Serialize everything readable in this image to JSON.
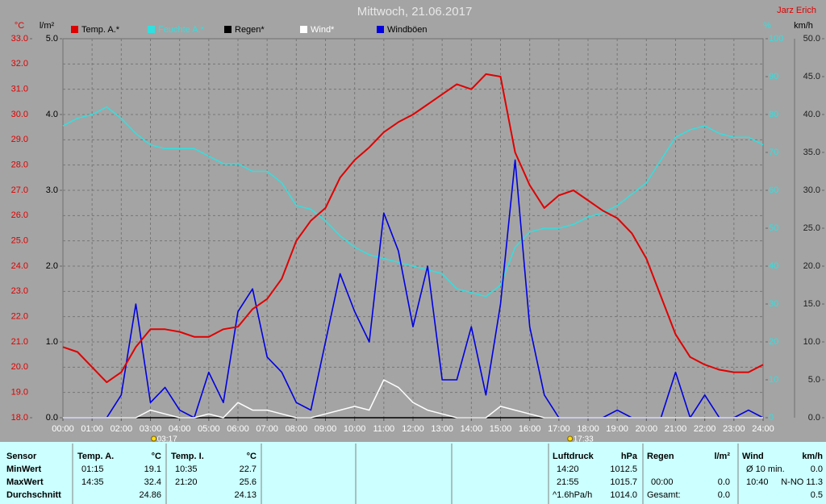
{
  "chart_data": {
    "type": "line",
    "title": "Mittwoch, 21.06.2017",
    "author": "Jarz Erich",
    "ylabel": "°C",
    "y2label": "l/m²",
    "y3label": "%",
    "y4label": "km/h",
    "xlim": [
      0,
      24
    ],
    "xticks": [
      {
        "value": 0,
        "label": "00:00"
      },
      {
        "value": 1,
        "label": "01:00"
      },
      {
        "value": 2,
        "label": "02:00"
      },
      {
        "value": 3,
        "label": "03:00"
      },
      {
        "value": 4,
        "label": "04:00"
      },
      {
        "value": 5,
        "label": "05:00"
      },
      {
        "value": 6,
        "label": "06:00"
      },
      {
        "value": 7,
        "label": "07:00"
      },
      {
        "value": 8,
        "label": "08:00"
      },
      {
        "value": 9,
        "label": "09:00"
      },
      {
        "value": 10,
        "label": "10:00"
      },
      {
        "value": 11,
        "label": "11:00"
      },
      {
        "value": 12,
        "label": "12:00"
      },
      {
        "value": 13,
        "label": "13:00"
      },
      {
        "value": 14,
        "label": "14:00"
      },
      {
        "value": 15,
        "label": "15:00"
      },
      {
        "value": 16,
        "label": "16:00"
      },
      {
        "value": 17,
        "label": "17:00"
      },
      {
        "value": 18,
        "label": "18:00"
      },
      {
        "value": 19,
        "label": "19:00"
      },
      {
        "value": 20,
        "label": "20:00"
      },
      {
        "value": 21,
        "label": "21:00"
      },
      {
        "value": 22,
        "label": "22:00"
      },
      {
        "value": 23,
        "label": "23:00"
      },
      {
        "value": 24,
        "label": "24:00"
      }
    ],
    "ylim": [
      18,
      33
    ],
    "yticks": [
      {
        "value": 18,
        "label": "18.0"
      },
      {
        "value": 19,
        "label": "19.0"
      },
      {
        "value": 20,
        "label": "20.0"
      },
      {
        "value": 21,
        "label": "21.0"
      },
      {
        "value": 22,
        "label": "22.0"
      },
      {
        "value": 23,
        "label": "23.0"
      },
      {
        "value": 24,
        "label": "24.0"
      },
      {
        "value": 25,
        "label": "25.0"
      },
      {
        "value": 26,
        "label": "26.0"
      },
      {
        "value": 27,
        "label": "27.0"
      },
      {
        "value": 28,
        "label": "28.0"
      },
      {
        "value": 29,
        "label": "29.0"
      },
      {
        "value": 30,
        "label": "30.0"
      },
      {
        "value": 31,
        "label": "31.0"
      },
      {
        "value": 32,
        "label": "32.0"
      },
      {
        "value": 33,
        "label": "33.0"
      }
    ],
    "y2lim": [
      0,
      5
    ],
    "y2ticks": [
      {
        "value": 0,
        "label": "0.0"
      },
      {
        "value": 1,
        "label": "1.0"
      },
      {
        "value": 2,
        "label": "2.0"
      },
      {
        "value": 3,
        "label": "3.0"
      },
      {
        "value": 4,
        "label": "4.0"
      },
      {
        "value": 5,
        "label": "5.0"
      }
    ],
    "y3lim": [
      0,
      100
    ],
    "y3ticks": [
      0,
      10,
      20,
      30,
      40,
      50,
      60,
      70,
      80,
      90,
      100
    ],
    "y4lim": [
      0,
      50
    ],
    "y4ticks": [
      {
        "value": 0,
        "label": "0.0"
      },
      {
        "value": 5,
        "label": "5.0"
      },
      {
        "value": 10,
        "label": "10.0"
      },
      {
        "value": 15,
        "label": "15.0"
      },
      {
        "value": 20,
        "label": "20.0"
      },
      {
        "value": 25,
        "label": "25.0"
      },
      {
        "value": 30,
        "label": "30.0"
      },
      {
        "value": 35,
        "label": "35.0"
      },
      {
        "value": 40,
        "label": "40.0"
      },
      {
        "value": 45,
        "label": "45.0"
      },
      {
        "value": 50,
        "label": "50.0"
      }
    ],
    "grid": true,
    "x": [
      0,
      0.5,
      1,
      1.5,
      2,
      2.5,
      3,
      3.5,
      4,
      4.5,
      5,
      5.5,
      6,
      6.5,
      7,
      7.5,
      8,
      8.5,
      9,
      9.5,
      10,
      10.5,
      11,
      11.5,
      12,
      12.5,
      13,
      13.5,
      14,
      14.5,
      15,
      15.5,
      16,
      16.5,
      17,
      17.5,
      18,
      18.5,
      19,
      19.5,
      20,
      20.5,
      21,
      21.5,
      22,
      22.5,
      23,
      23.5,
      24
    ],
    "series": [
      {
        "name": "Temp. A.*",
        "color": "#e00000",
        "axis": "y",
        "values": [
          20.8,
          20.6,
          20.0,
          19.4,
          19.8,
          20.8,
          21.5,
          21.5,
          21.4,
          21.2,
          21.2,
          21.5,
          21.6,
          22.3,
          22.7,
          23.5,
          25.0,
          25.8,
          26.3,
          27.5,
          28.2,
          28.7,
          29.3,
          29.7,
          30.0,
          30.4,
          30.8,
          31.2,
          31.0,
          31.6,
          31.5,
          28.5,
          27.2,
          26.3,
          26.8,
          27.0,
          26.6,
          26.2,
          25.9,
          25.3,
          24.3,
          22.8,
          21.3,
          20.4,
          20.1,
          19.9,
          19.8,
          19.8,
          20.1
        ]
      },
      {
        "name": "Feuchte A.*",
        "color": "#30e0e0",
        "axis": "y3",
        "values": [
          77,
          79,
          80,
          82,
          79,
          75,
          72,
          71,
          71,
          71,
          69,
          67,
          67,
          65,
          65,
          62,
          56,
          55,
          52,
          48,
          45,
          43,
          42,
          41,
          40,
          39,
          38,
          34,
          33,
          32,
          35,
          45,
          49,
          50,
          50,
          51,
          53,
          54,
          56,
          59,
          62,
          68,
          74,
          76,
          77,
          75,
          74,
          74,
          72
        ]
      },
      {
        "name": "Regen*",
        "color": "#000000",
        "axis": "y2",
        "values": [
          0,
          0,
          0,
          0,
          0,
          0,
          0,
          0,
          0,
          0,
          0,
          0,
          0,
          0,
          0,
          0,
          0,
          0,
          0,
          0,
          0,
          0,
          0,
          0,
          0,
          0,
          0,
          0,
          0,
          0,
          0,
          0,
          0,
          0,
          0,
          0,
          0,
          0,
          0,
          0,
          0,
          0,
          0,
          0,
          0,
          0,
          0,
          0,
          0
        ]
      },
      {
        "name": "Wind*",
        "color": "#ffffff",
        "axis": "y4",
        "values": [
          0,
          0,
          0,
          0,
          0,
          0,
          1,
          0.5,
          0,
          0,
          0.5,
          0,
          2,
          1,
          1,
          0.5,
          0,
          0,
          0.5,
          1,
          1.5,
          1,
          5,
          4,
          2,
          1,
          0.5,
          0,
          0,
          0,
          1.5,
          1,
          0.5,
          0,
          0,
          0,
          0,
          0,
          0,
          0,
          0,
          0,
          0,
          0,
          0,
          0,
          0,
          0,
          0
        ]
      },
      {
        "name": "Windböen",
        "color": "#0000e0",
        "axis": "y4",
        "values": [
          0,
          0,
          0,
          0,
          3,
          15,
          2,
          4,
          1,
          0,
          6,
          2,
          14,
          17,
          8,
          6,
          2,
          1,
          10,
          19,
          14,
          10,
          27,
          22,
          12,
          20,
          5,
          5,
          12,
          3,
          15,
          34,
          12,
          3,
          0,
          0,
          0,
          0,
          1,
          0,
          0,
          0,
          6,
          0,
          3,
          0,
          0,
          1,
          0
        ]
      }
    ],
    "annotations": [
      {
        "x": 3.28,
        "label": "03:17"
      },
      {
        "x": 17.55,
        "label": "17:33"
      }
    ]
  },
  "table": {
    "columns": [
      "Sensor",
      "Temp. A.",
      "°C",
      "Temp. I.",
      "°C",
      "Luftdruck",
      "hPa",
      "Regen",
      "l/m²",
      "Wind",
      "km/h"
    ],
    "rows": [
      [
        "MinWert",
        "01:15",
        "19.1",
        "10:35",
        "22.7",
        "14:20",
        "1012.5",
        null,
        null,
        "Ø 10 min.",
        "0.0"
      ],
      [
        "MaxWert",
        "14:35",
        "32.4",
        "21:20",
        "25.6",
        "21:55",
        "1015.7",
        "00:00",
        "0.0",
        "10:40",
        "N-NO 11.3"
      ],
      [
        "Durchschnitt",
        null,
        "24.86",
        null,
        "24.13",
        "^1.6hPa/h",
        "1014.0",
        "Gesamt:",
        "0.0",
        null,
        "0.5"
      ]
    ]
  }
}
